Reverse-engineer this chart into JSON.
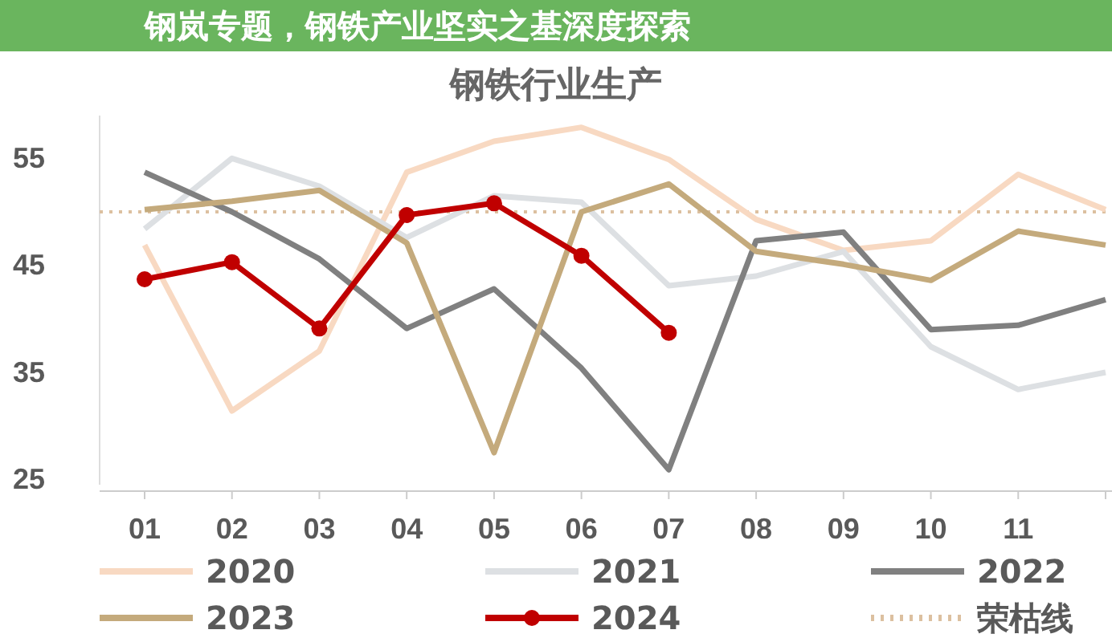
{
  "chart_data": {
    "type": "line",
    "title": "钢铁行业生产",
    "annotations": [
      "钢岚专题，钢铁产业坚实之基深度探索"
    ],
    "categories": [
      "01",
      "02",
      "03",
      "04",
      "05",
      "06",
      "07",
      "08",
      "09",
      "10",
      "11",
      null
    ],
    "ylim": [
      24.5,
      59
    ],
    "yticks": [
      25,
      35,
      45,
      55
    ],
    "grid": false,
    "legend": "bottom",
    "marker": "none",
    "line_style": "solid",
    "ref_lines": [
      {
        "axis": "y",
        "value": 50,
        "label": "荣枯线",
        "color": "#dcc0a0",
        "line_style": "dotted"
      }
    ],
    "series": [
      {
        "name": "2020",
        "color": "#f8d9c2",
        "values": [
          46.9,
          31.4,
          37,
          53.7,
          56.6,
          57.9,
          54.9,
          49.3,
          46.4,
          47.3,
          53.5,
          50.2
        ]
      },
      {
        "name": "2021",
        "color": "#dde0e3",
        "values": [
          48.4,
          55.0,
          52.4,
          47.6,
          51.5,
          50.9,
          43.1,
          44.0,
          46.3,
          37.4,
          33.4,
          35.0
        ]
      },
      {
        "name": "2022",
        "color": "#808080",
        "values": [
          53.7,
          50.0,
          45.6,
          39.1,
          42.8,
          35.4,
          25.9,
          47.3,
          48.1,
          39.0,
          39.4,
          41.8
        ]
      },
      {
        "name": "2023",
        "color": "#c4aa7c",
        "values": [
          50.2,
          51.0,
          52.0,
          47.1,
          27.5,
          50.0,
          52.6,
          46.3,
          45.1,
          43.6,
          48.2,
          46.9
        ]
      },
      {
        "name": "2024",
        "color": "#c00000",
        "marker": "circle",
        "values": [
          43.7,
          45.3,
          39.1,
          49.7,
          50.8,
          45.9,
          38.7,
          null,
          null,
          null,
          null,
          null
        ]
      }
    ]
  }
}
